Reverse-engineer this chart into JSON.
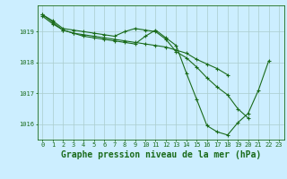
{
  "title": "Graphe pression niveau de la mer (hPa)",
  "x_labels": [
    "0",
    "1",
    "2",
    "3",
    "4",
    "5",
    "6",
    "7",
    "8",
    "9",
    "10",
    "11",
    "12",
    "13",
    "14",
    "15",
    "16",
    "17",
    "18",
    "19",
    "20",
    "21",
    "22",
    "23"
  ],
  "x_values": [
    0,
    1,
    2,
    3,
    4,
    5,
    6,
    7,
    8,
    9,
    10,
    11,
    12,
    13,
    14,
    15,
    16,
    17,
    18,
    19,
    20,
    21,
    22,
    23
  ],
  "series1": [
    1019.55,
    1019.35,
    1019.1,
    1019.05,
    1019.0,
    1018.95,
    1018.9,
    1018.85,
    1019.0,
    1019.1,
    1019.05,
    1019.0,
    1018.75,
    1018.35,
    1018.15,
    1017.85,
    1017.5,
    1017.2,
    1016.95,
    1016.5,
    1016.2,
    null,
    null,
    null
  ],
  "series2": [
    1019.5,
    1019.25,
    1019.05,
    1018.95,
    1018.9,
    1018.85,
    1018.8,
    1018.75,
    1018.7,
    1018.65,
    1018.6,
    1018.55,
    1018.5,
    1018.4,
    1018.3,
    1018.1,
    1017.95,
    1017.8,
    1017.6,
    null,
    null,
    null,
    null,
    null
  ],
  "series3": [
    1019.55,
    1019.3,
    1019.05,
    1018.95,
    1018.85,
    1018.8,
    1018.75,
    1018.7,
    1018.65,
    1018.6,
    1018.85,
    1019.05,
    1018.8,
    1018.55,
    1017.65,
    1016.8,
    1015.95,
    1015.75,
    1015.65,
    1016.05,
    1016.35,
    1017.1,
    1018.05,
    null
  ],
  "line_color": "#1a6b1a",
  "bg_color": "#cceeff",
  "grid_color": "#aacccc",
  "ylim": [
    1015.5,
    1019.85
  ],
  "yticks": [
    1016,
    1017,
    1018,
    1019
  ],
  "title_fontsize": 7,
  "tick_fontsize": 5,
  "marker": "+"
}
